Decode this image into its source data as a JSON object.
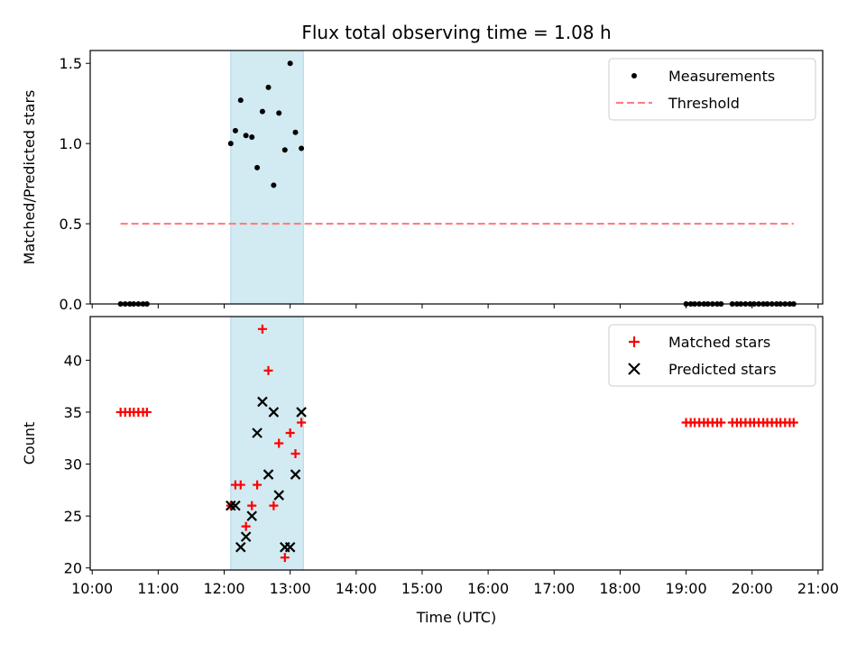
{
  "chart_data": {
    "type": "scatter",
    "title": "Flux total observing time = 1.08 h",
    "xlabel": "Time (UTC)",
    "x_unit": "hour",
    "xlim": [
      9.97,
      21.07
    ],
    "x_ticks": [
      "10:00",
      "11:00",
      "12:00",
      "13:00",
      "14:00",
      "15:00",
      "16:00",
      "17:00",
      "18:00",
      "19:00",
      "20:00",
      "21:00"
    ],
    "highlight_span": {
      "x": [
        12.1,
        13.2
      ],
      "color": "#add8e6"
    },
    "panels": [
      {
        "ylabel": "Matched/Predicted stars",
        "ylim": [
          0,
          1.58
        ],
        "y_ticks": [
          "0.0",
          "0.5",
          "1.0",
          "1.5"
        ],
        "legend": "top-right",
        "series": [
          {
            "name": "Measurements",
            "kind": "scatter",
            "marker": "dot",
            "color": "#000000",
            "x": [
              10.43,
              10.5,
              10.57,
              10.63,
              10.7,
              10.77,
              10.83,
              12.1,
              12.17,
              12.25,
              12.33,
              12.42,
              12.5,
              12.58,
              12.67,
              12.75,
              12.83,
              12.92,
              13.0,
              13.08,
              13.17,
              19.0,
              19.07,
              19.13,
              19.2,
              19.27,
              19.33,
              19.4,
              19.47,
              19.53,
              19.7,
              19.77,
              19.83,
              19.9,
              19.97,
              20.03,
              20.1,
              20.17,
              20.23,
              20.3,
              20.37,
              20.43,
              20.5,
              20.57,
              20.63
            ],
            "y": [
              0,
              0,
              0,
              0,
              0,
              0,
              0,
              1.0,
              1.08,
              1.27,
              1.05,
              1.04,
              0.85,
              1.2,
              1.35,
              0.74,
              1.19,
              0.96,
              1.5,
              1.07,
              0.97,
              0,
              0,
              0,
              0,
              0,
              0,
              0,
              0,
              0,
              0,
              0,
              0,
              0,
              0,
              0,
              0,
              0,
              0,
              0,
              0,
              0,
              0,
              0,
              0
            ]
          },
          {
            "name": "Threshold",
            "kind": "line",
            "style": "dashed",
            "color": "#ff7f7f",
            "x": [
              10.43,
              20.63
            ],
            "y": [
              0.5,
              0.5
            ]
          }
        ]
      },
      {
        "ylabel": "Count",
        "ylim": [
          19.8,
          44.2
        ],
        "y_ticks": [
          "20",
          "25",
          "30",
          "35",
          "40"
        ],
        "legend": "top-right",
        "series": [
          {
            "name": "Matched stars",
            "kind": "scatter",
            "marker": "plus",
            "color": "#ff0000",
            "x": [
              10.43,
              10.5,
              10.57,
              10.63,
              10.7,
              10.77,
              10.83,
              12.1,
              12.17,
              12.25,
              12.33,
              12.42,
              12.5,
              12.58,
              12.67,
              12.75,
              12.83,
              12.92,
              13.0,
              13.08,
              13.17,
              19.0,
              19.07,
              19.13,
              19.2,
              19.27,
              19.33,
              19.4,
              19.47,
              19.53,
              19.7,
              19.77,
              19.83,
              19.9,
              19.97,
              20.03,
              20.1,
              20.17,
              20.23,
              20.3,
              20.37,
              20.43,
              20.5,
              20.57,
              20.63
            ],
            "y": [
              35,
              35,
              35,
              35,
              35,
              35,
              35,
              26,
              28,
              28,
              24,
              26,
              28,
              43,
              39,
              26,
              32,
              21,
              33,
              31,
              34,
              34,
              34,
              34,
              34,
              34,
              34,
              34,
              34,
              34,
              34,
              34,
              34,
              34,
              34,
              34,
              34,
              34,
              34,
              34,
              34,
              34,
              34,
              34,
              34
            ]
          },
          {
            "name": "Predicted stars",
            "kind": "scatter",
            "marker": "x",
            "color": "#000000",
            "x": [
              12.1,
              12.17,
              12.25,
              12.33,
              12.42,
              12.5,
              12.58,
              12.67,
              12.75,
              12.83,
              12.92,
              13.0,
              13.08,
              13.17
            ],
            "y": [
              26,
              26,
              22,
              23,
              25,
              33,
              36,
              29,
              35,
              27,
              22,
              22,
              29,
              35
            ]
          }
        ]
      }
    ]
  }
}
